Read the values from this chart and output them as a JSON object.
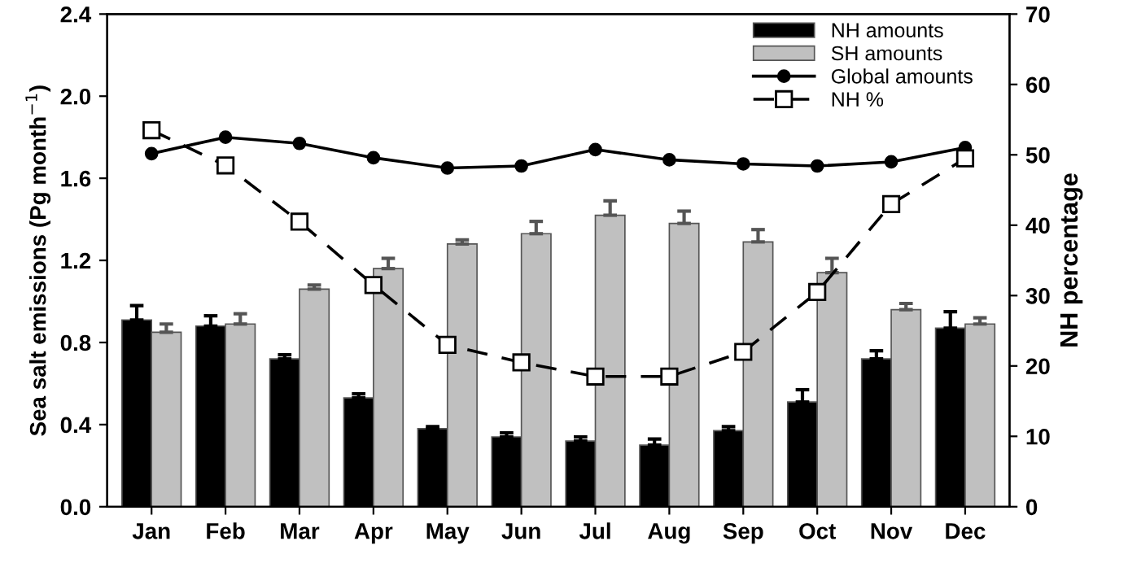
{
  "chart_data": {
    "type": "bar",
    "ylabel": "Sea salt emissions (Pg month$^{−1}$)",
    "y2label": "NH percentage",
    "categories": [
      "Jan",
      "Feb",
      "Mar",
      "Apr",
      "May",
      "Jun",
      "Jul",
      "Aug",
      "Sep",
      "Oct",
      "Nov",
      "Dec"
    ],
    "series": [
      {
        "name": "NH amounts",
        "color": "#000000",
        "values": [
          0.91,
          0.88,
          0.72,
          0.53,
          0.38,
          0.34,
          0.32,
          0.3,
          0.37,
          0.51,
          0.72,
          0.87
        ],
        "errors": [
          0.07,
          0.05,
          0.02,
          0.02,
          0.01,
          0.02,
          0.02,
          0.03,
          0.02,
          0.06,
          0.04,
          0.08
        ]
      },
      {
        "name": "SH amounts",
        "color": "#c0c0c0",
        "values": [
          0.85,
          0.89,
          1.06,
          1.16,
          1.28,
          1.33,
          1.42,
          1.38,
          1.29,
          1.14,
          0.96,
          0.89
        ],
        "errors": [
          0.04,
          0.05,
          0.02,
          0.05,
          0.02,
          0.06,
          0.07,
          0.06,
          0.06,
          0.07,
          0.03,
          0.03
        ]
      },
      {
        "name": "Global amounts",
        "type": "line",
        "color": "#000000",
        "marker": "circle",
        "line_style": "solid",
        "values": [
          1.72,
          1.8,
          1.77,
          1.7,
          1.65,
          1.66,
          1.74,
          1.69,
          1.67,
          1.66,
          1.68,
          1.75
        ]
      },
      {
        "name": "NH %",
        "type": "line",
        "color": "#000000",
        "marker": "square",
        "line_style": "dashed",
        "axis": "y2",
        "values": [
          53.5,
          48.5,
          40.5,
          31.5,
          23,
          20.5,
          18.5,
          18.5,
          22,
          30.5,
          43,
          49.5
        ]
      }
    ],
    "ylim": [
      0,
      2.4
    ],
    "yticks": [
      {
        "value": 0,
        "label": "0.0"
      },
      {
        "value": 0.4,
        "label": "0.4"
      },
      {
        "value": 0.8,
        "label": "0.8"
      },
      {
        "value": 1.2,
        "label": "1.2"
      },
      {
        "value": 1.6,
        "label": "1.6"
      },
      {
        "value": 2.0,
        "label": "2.0"
      },
      {
        "value": 2.4,
        "label": "2.4"
      }
    ],
    "y2lim": [
      0,
      70
    ],
    "y2ticks": [
      0,
      10,
      20,
      30,
      40,
      50,
      60,
      70
    ],
    "legend": "top right",
    "grid": false
  }
}
